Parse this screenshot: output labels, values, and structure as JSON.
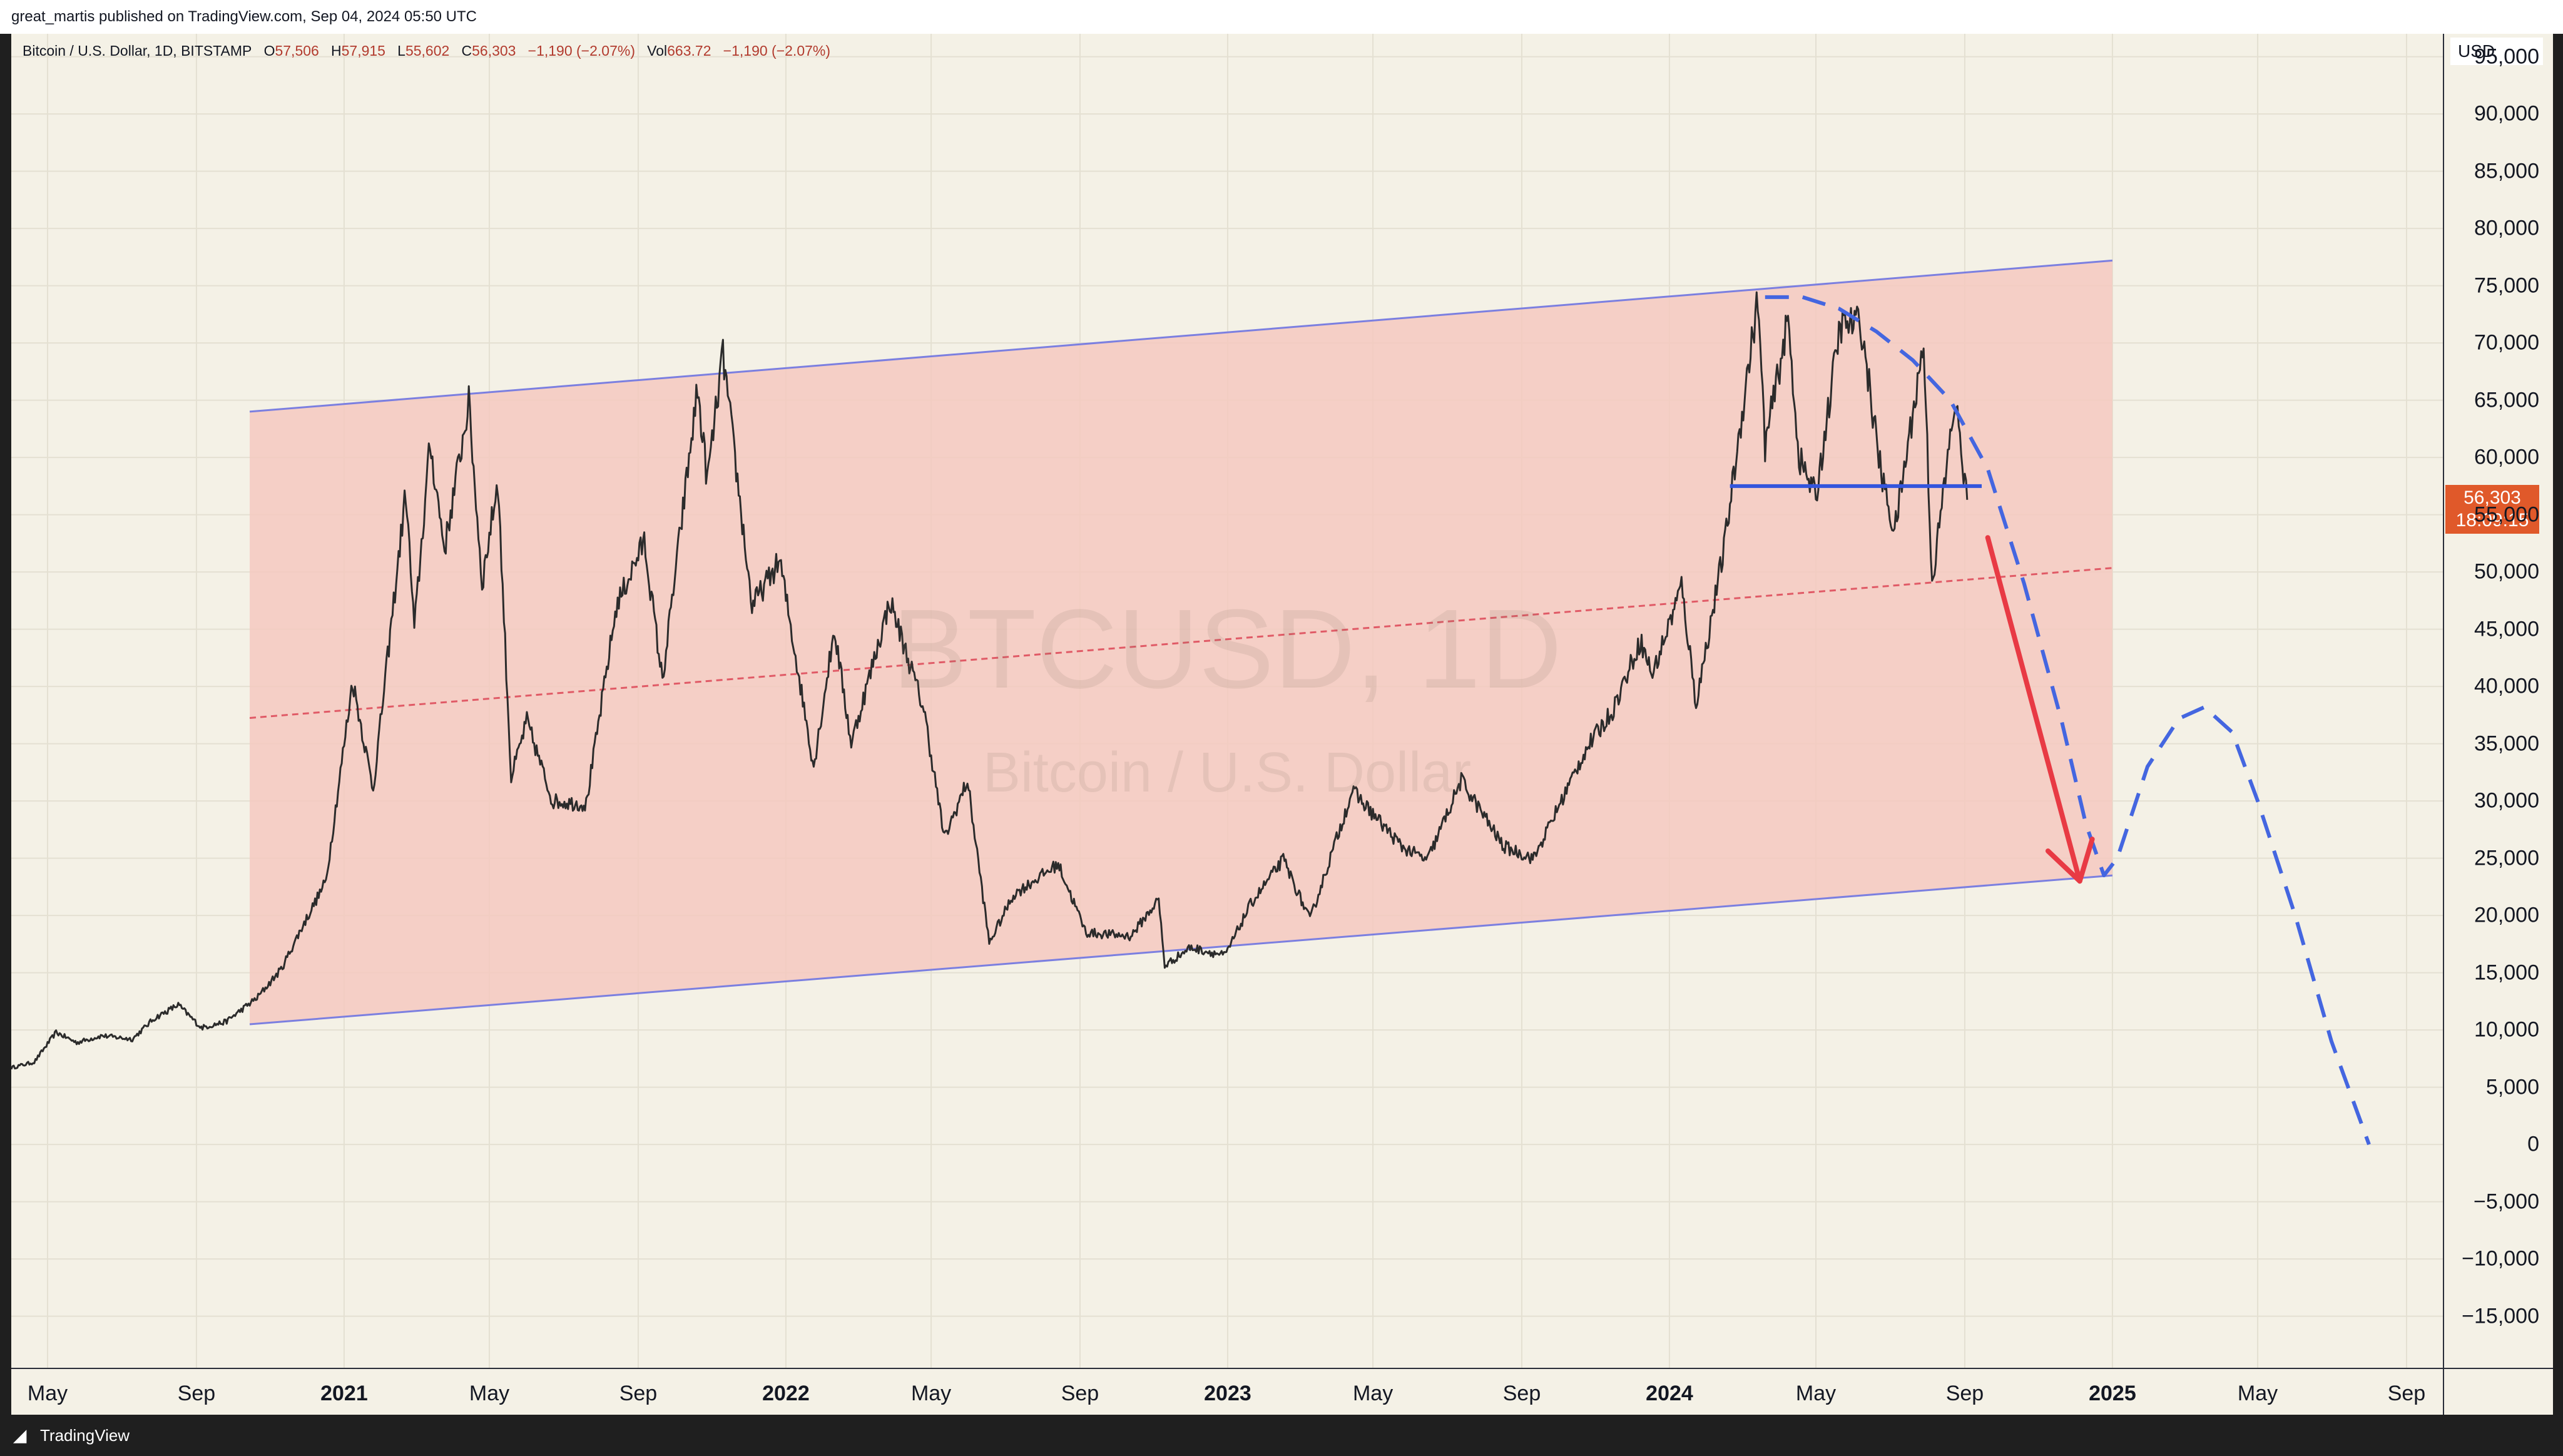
{
  "header": {
    "publisher": "great_martis published on TradingView.com, Sep 04, 2024 05:50 UTC"
  },
  "legend": {
    "symbol": "Bitcoin / U.S. Dollar, 1D, BITSTAMP",
    "o_label": "O",
    "open": "57,506",
    "h_label": "H",
    "high": "57,915",
    "l_label": "L",
    "low": "55,602",
    "c_label": "C",
    "close": "56,303",
    "change": "−1,190 (−2.07%)",
    "vol_label": "Vol",
    "vol": "663.72",
    "vol_change": "−1,190 (−2.07%)"
  },
  "watermark": {
    "ticker": "BTCUSD, 1D",
    "name": "Bitcoin / U.S. Dollar"
  },
  "price_scale": {
    "currency": "USD",
    "last_price": "56,303",
    "countdown": "18:09:15"
  },
  "footer": {
    "brand": "TradingView",
    "logo_icon": "tradingview-logo-icon"
  },
  "colors": {
    "background": "#f4f1e6",
    "channel_fill": "#f4c9c0",
    "channel_line": "#7b7fe0",
    "midline": "#e05a66",
    "dashed_projection": "#4466e0",
    "arrow": "#e83a44",
    "support_line": "#3355dd",
    "price_tag": "#e0592a",
    "candles": "#2b2b2b"
  },
  "chart_data": {
    "type": "line",
    "title": "",
    "symbol": "BTCUSD",
    "interval": "1D",
    "exchange": "BITSTAMP",
    "x_range": [
      "2020-04-01",
      "2025-10-01"
    ],
    "y_range": [
      -19500,
      97000
    ],
    "y_ticks": [
      "95,000",
      "90,000",
      "85,000",
      "80,000",
      "75,000",
      "70,000",
      "65,000",
      "60,000",
      "55,000",
      "50,000",
      "45,000",
      "40,000",
      "35,000",
      "30,000",
      "25,000",
      "20,000",
      "15,000",
      "10,000",
      "5,000",
      "0",
      "−5,000",
      "−10,000",
      "−15,000"
    ],
    "y_tick_values": [
      95000,
      90000,
      85000,
      80000,
      75000,
      70000,
      65000,
      60000,
      55000,
      50000,
      45000,
      40000,
      35000,
      30000,
      25000,
      20000,
      15000,
      10000,
      5000,
      0,
      -5000,
      -10000,
      -15000
    ],
    "x_ticks": [
      {
        "label": "May",
        "date": "2020-05-01",
        "year": false
      },
      {
        "label": "Sep",
        "date": "2020-09-01",
        "year": false
      },
      {
        "label": "2021",
        "date": "2021-01-01",
        "year": true
      },
      {
        "label": "May",
        "date": "2021-05-01",
        "year": false
      },
      {
        "label": "Sep",
        "date": "2021-09-01",
        "year": false
      },
      {
        "label": "2022",
        "date": "2022-01-01",
        "year": true
      },
      {
        "label": "May",
        "date": "2022-05-01",
        "year": false
      },
      {
        "label": "Sep",
        "date": "2022-09-01",
        "year": false
      },
      {
        "label": "2023",
        "date": "2023-01-01",
        "year": true
      },
      {
        "label": "May",
        "date": "2023-05-01",
        "year": false
      },
      {
        "label": "Sep",
        "date": "2023-09-01",
        "year": false
      },
      {
        "label": "2024",
        "date": "2024-01-01",
        "year": true
      },
      {
        "label": "May",
        "date": "2024-05-01",
        "year": false
      },
      {
        "label": "Sep",
        "date": "2024-09-01",
        "year": false
      },
      {
        "label": "2025",
        "date": "2025-01-01",
        "year": true
      },
      {
        "label": "May",
        "date": "2025-05-01",
        "year": false
      },
      {
        "label": "Sep",
        "date": "2025-09-01",
        "year": false
      }
    ],
    "price_series": [
      [
        "2020-04-01",
        6700
      ],
      [
        "2020-04-20",
        7200
      ],
      [
        "2020-05-08",
        9800
      ],
      [
        "2020-05-25",
        8900
      ],
      [
        "2020-06-15",
        9500
      ],
      [
        "2020-07-10",
        9200
      ],
      [
        "2020-07-28",
        11000
      ],
      [
        "2020-08-17",
        12200
      ],
      [
        "2020-09-05",
        10200
      ],
      [
        "2020-09-25",
        10700
      ],
      [
        "2020-10-21",
        12800
      ],
      [
        "2020-11-10",
        15300
      ],
      [
        "2020-11-25",
        18500
      ],
      [
        "2020-12-17",
        23000
      ],
      [
        "2021-01-08",
        40500
      ],
      [
        "2021-01-25",
        31000
      ],
      [
        "2021-02-21",
        57000
      ],
      [
        "2021-02-28",
        45000
      ],
      [
        "2021-03-13",
        61200
      ],
      [
        "2021-03-25",
        52000
      ],
      [
        "2021-04-14",
        64800
      ],
      [
        "2021-04-25",
        49000
      ],
      [
        "2021-05-08",
        58000
      ],
      [
        "2021-05-19",
        32000
      ],
      [
        "2021-06-01",
        37000
      ],
      [
        "2021-06-22",
        30000
      ],
      [
        "2021-07-20",
        29700
      ],
      [
        "2021-08-14",
        47000
      ],
      [
        "2021-09-06",
        52700
      ],
      [
        "2021-09-21",
        40500
      ],
      [
        "2021-10-20",
        66000
      ],
      [
        "2021-10-28",
        58000
      ],
      [
        "2021-11-10",
        69000
      ],
      [
        "2021-12-04",
        47000
      ],
      [
        "2021-12-27",
        51000
      ],
      [
        "2022-01-24",
        33000
      ],
      [
        "2022-02-10",
        45000
      ],
      [
        "2022-02-24",
        35000
      ],
      [
        "2022-03-28",
        47500
      ],
      [
        "2022-04-25",
        38000
      ],
      [
        "2022-05-12",
        26700
      ],
      [
        "2022-05-31",
        31800
      ],
      [
        "2022-06-18",
        17600
      ],
      [
        "2022-07-08",
        21800
      ],
      [
        "2022-08-14",
        24500
      ],
      [
        "2022-09-06",
        18500
      ],
      [
        "2022-10-13",
        18200
      ],
      [
        "2022-11-05",
        21400
      ],
      [
        "2022-11-10",
        15600
      ],
      [
        "2022-12-01",
        17200
      ],
      [
        "2022-12-30",
        16500
      ],
      [
        "2023-01-20",
        21000
      ],
      [
        "2023-02-16",
        24900
      ],
      [
        "2023-03-10",
        19600
      ],
      [
        "2023-04-14",
        30900
      ],
      [
        "2023-05-25",
        26000
      ],
      [
        "2023-06-15",
        24800
      ],
      [
        "2023-07-13",
        31800
      ],
      [
        "2023-08-17",
        26000
      ],
      [
        "2023-09-11",
        25000
      ],
      [
        "2023-10-24",
        34500
      ],
      [
        "2023-11-15",
        37900
      ],
      [
        "2023-12-08",
        44000
      ],
      [
        "2023-12-18",
        41000
      ],
      [
        "2024-01-11",
        48800
      ],
      [
        "2024-01-23",
        38500
      ],
      [
        "2024-02-15",
        52000
      ],
      [
        "2024-03-05",
        67000
      ],
      [
        "2024-03-14",
        73800
      ],
      [
        "2024-03-20",
        61000
      ],
      [
        "2024-04-08",
        72000
      ],
      [
        "2024-04-17",
        60000
      ],
      [
        "2024-05-01",
        56500
      ],
      [
        "2024-05-21",
        71500
      ],
      [
        "2024-06-07",
        71800
      ],
      [
        "2024-06-24",
        58500
      ],
      [
        "2024-07-05",
        53500
      ],
      [
        "2024-07-29",
        70000
      ],
      [
        "2024-08-05",
        49000
      ],
      [
        "2024-08-24",
        65000
      ],
      [
        "2024-09-03",
        56303
      ]
    ],
    "annotations": {
      "channel_upper": [
        [
          "2020-10-15",
          64000
        ],
        [
          "2025-01-01",
          77200
        ]
      ],
      "channel_lower": [
        [
          "2020-10-15",
          10500
        ],
        [
          "2025-01-01",
          23500
        ]
      ],
      "channel_mid": [
        [
          "2020-10-15",
          37250
        ],
        [
          "2025-01-01",
          50350
        ]
      ],
      "support_line": [
        [
          "2024-02-20",
          57500
        ],
        [
          "2024-09-15",
          57500
        ]
      ],
      "arrow": [
        [
          "2024-09-20",
          53000
        ],
        [
          "2024-12-05",
          23000
        ]
      ],
      "projection": [
        [
          "2024-03-20",
          74000
        ],
        [
          "2024-04-20",
          74000
        ],
        [
          "2024-05-20",
          73000
        ],
        [
          "2024-06-20",
          71000
        ],
        [
          "2024-07-20",
          68500
        ],
        [
          "2024-08-20",
          65000
        ],
        [
          "2024-09-20",
          59000
        ],
        [
          "2024-10-20",
          49000
        ],
        [
          "2024-11-20",
          37000
        ],
        [
          "2024-12-10",
          28000
        ],
        [
          "2024-12-25",
          23500
        ],
        [
          "2025-01-05",
          25000
        ],
        [
          "2025-01-30",
          33000
        ],
        [
          "2025-02-25",
          37200
        ],
        [
          "2025-03-18",
          38200
        ],
        [
          "2025-04-10",
          36000
        ],
        [
          "2025-05-01",
          30000
        ],
        [
          "2025-06-01",
          20000
        ],
        [
          "2025-07-01",
          9000
        ],
        [
          "2025-08-01",
          0
        ]
      ]
    }
  }
}
